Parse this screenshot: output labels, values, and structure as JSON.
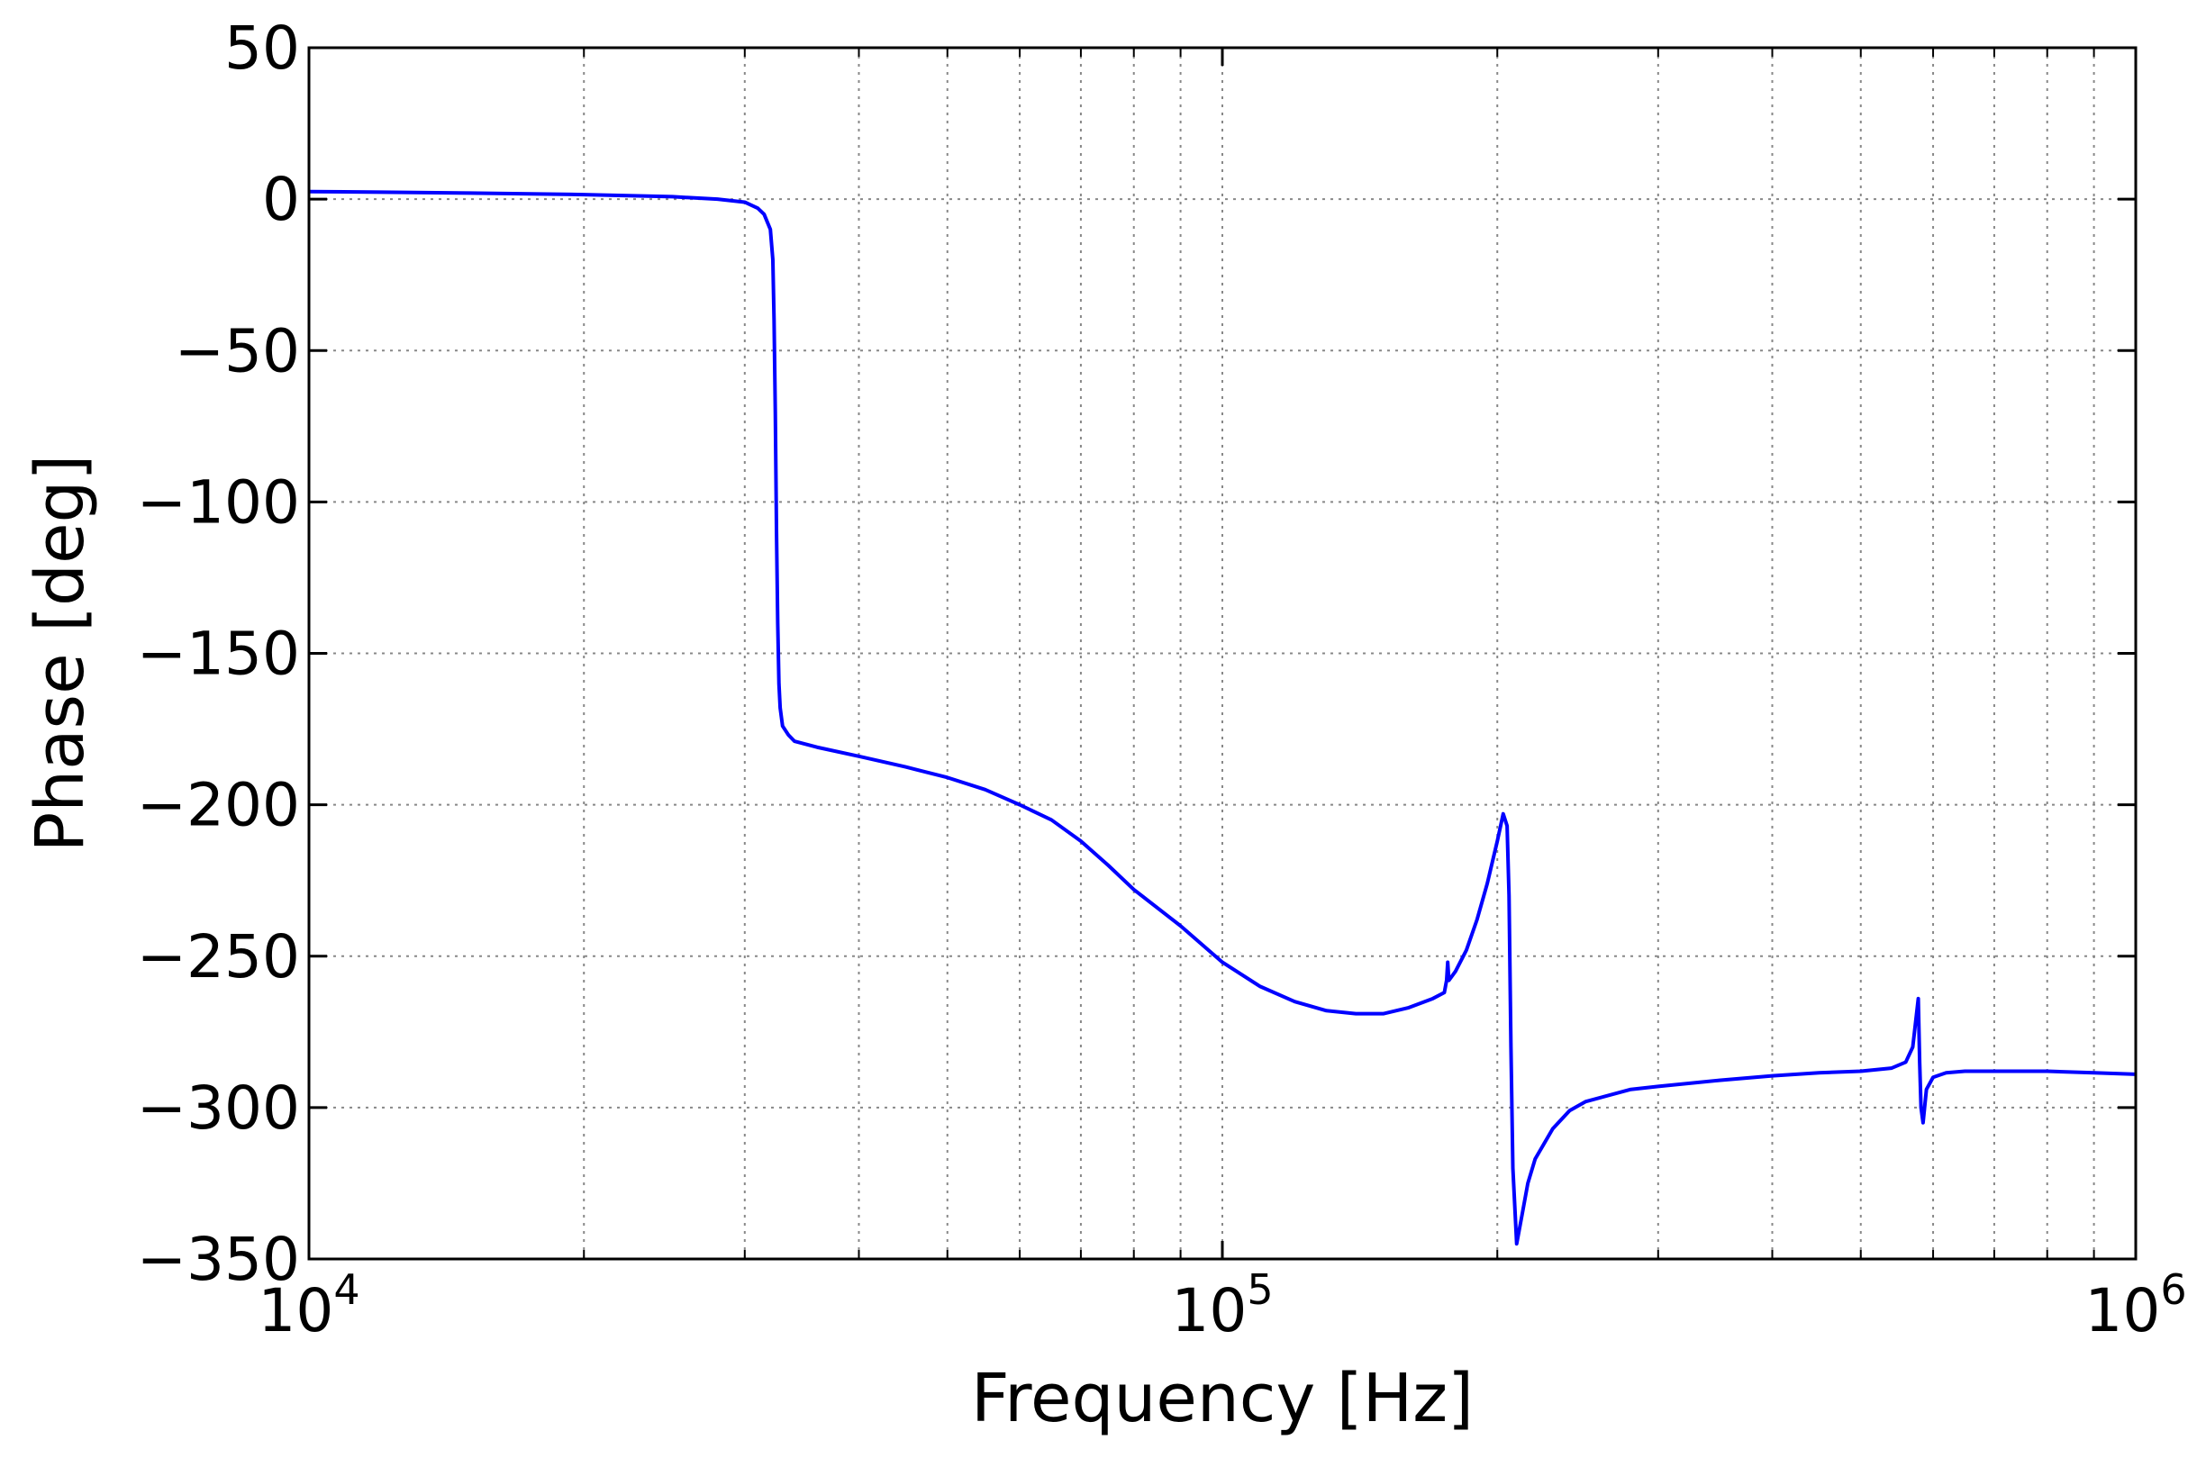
{
  "chart_data": {
    "type": "line",
    "title": "",
    "xlabel": "Frequency [Hz]",
    "ylabel": "Phase [deg]",
    "xscale": "log",
    "xlim": [
      10000,
      1000000
    ],
    "ylim": [
      -350,
      50
    ],
    "x_ticks": [
      {
        "base": "10",
        "exp": "4",
        "value": 10000
      },
      {
        "base": "10",
        "exp": "5",
        "value": 100000
      },
      {
        "base": "10",
        "exp": "6",
        "value": 1000000
      }
    ],
    "y_ticks": [
      {
        "label": "50",
        "value": 50
      },
      {
        "label": "0",
        "value": 0
      },
      {
        "label": "−50",
        "value": -50
      },
      {
        "label": "−100",
        "value": -100
      },
      {
        "label": "−150",
        "value": -150
      },
      {
        "label": "−200",
        "value": -200
      },
      {
        "label": "−250",
        "value": -250
      },
      {
        "label": "−300",
        "value": -300
      },
      {
        "label": "−350",
        "value": -350
      }
    ],
    "grid": true,
    "line_color": "#0000ff",
    "series": [
      {
        "x": [
          10000,
          12000,
          15000,
          20000,
          25000,
          28000,
          30000,
          31000,
          31500,
          32000,
          32200,
          32300,
          32400,
          32500,
          32600,
          32700,
          32800,
          33000,
          33500,
          34000,
          36000,
          40000,
          45000,
          50000,
          55000,
          60000,
          65000,
          70000,
          75000,
          80000,
          90000,
          100000,
          110000,
          120000,
          130000,
          140000,
          150000,
          160000,
          170000,
          175000,
          176000,
          176500,
          177000,
          178000,
          180000,
          185000,
          190000,
          195000,
          200000,
          203000,
          205000,
          206000,
          207000,
          208000,
          210000,
          213000,
          216000,
          220000,
          230000,
          240000,
          250000,
          280000,
          300000,
          350000,
          400000,
          450000,
          500000,
          540000,
          560000,
          570000,
          575000,
          578000,
          580000,
          582000,
          585000,
          590000,
          600000,
          620000,
          650000,
          700000,
          800000,
          900000,
          1000000
        ],
        "y": [
          2.5,
          2.3,
          2,
          1.5,
          0.8,
          0,
          -1,
          -3,
          -5,
          -10,
          -20,
          -40,
          -70,
          -110,
          -140,
          -160,
          -168,
          -174,
          -177,
          -179,
          -181,
          -184,
          -187.5,
          -191,
          -195,
          -200,
          -205,
          -212,
          -220,
          -228,
          -240,
          -252,
          -260,
          -265,
          -268,
          -269,
          -269,
          -267,
          -264,
          -262,
          -258,
          -252,
          -258,
          -257,
          -255,
          -248,
          -238,
          -226,
          -212,
          -203,
          -207,
          -230,
          -280,
          -320,
          -345,
          -335,
          -325,
          -317,
          -307,
          -301,
          -298,
          -294,
          -293,
          -291,
          -289.5,
          -288.5,
          -288,
          -287,
          -285,
          -280,
          -270,
          -264,
          -285,
          -300,
          -305,
          -294,
          -290,
          -288.5,
          -288,
          -288,
          -288,
          -288.5,
          -289
        ]
      }
    ]
  }
}
